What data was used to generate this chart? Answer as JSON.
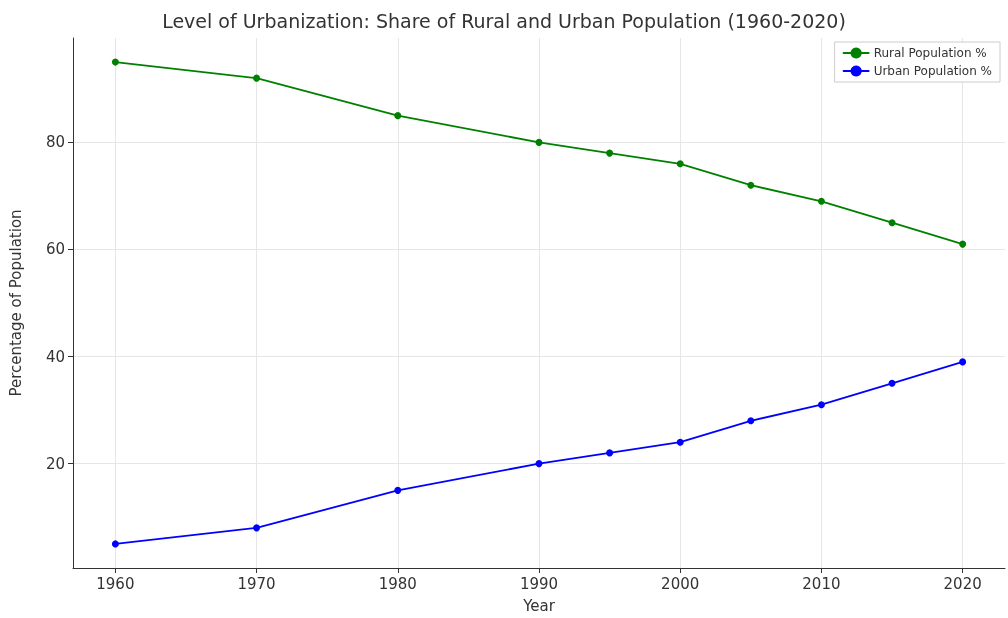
{
  "chart_data": {
    "type": "line",
    "title": "Level of Urbanization: Share of Rural and Urban Population (1960-2020)",
    "xlabel": "Year",
    "ylabel": "Percentage of Population",
    "x": [
      1960,
      1970,
      1980,
      1990,
      1995,
      2000,
      2005,
      2010,
      2015,
      2020
    ],
    "series": [
      {
        "name": "Rural Population %",
        "color": "#008000",
        "values": [
          95,
          92,
          85,
          80,
          78,
          76,
          72,
          69,
          65,
          61
        ]
      },
      {
        "name": "Urban Population %",
        "color": "#0000ff",
        "values": [
          5,
          8,
          15,
          20,
          22,
          24,
          28,
          31,
          35,
          39
        ]
      }
    ],
    "xlim": [
      1957,
      2023
    ],
    "xticks": [
      1960,
      1970,
      1980,
      1990,
      2000,
      2010,
      2020
    ],
    "ylim": [
      0.5,
      99.5
    ],
    "yticks": [
      20,
      40,
      60,
      80
    ],
    "grid": true,
    "legend": "top right",
    "marker": "circle",
    "line_style": "solid"
  }
}
